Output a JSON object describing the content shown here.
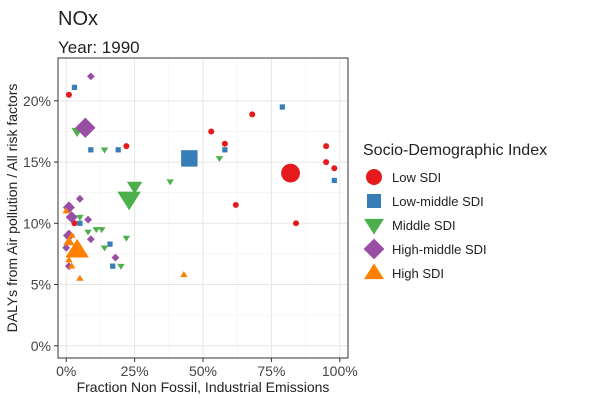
{
  "chart_data": {
    "type": "scatter",
    "title": "NOx",
    "subtitle": "Year: 1990",
    "xlabel": "Fraction Non Fossil, Industrial Emissions",
    "ylabel": "DALYs from Air pollution / All risk factors",
    "xlim": [
      -0.03,
      1.03
    ],
    "ylim": [
      -0.01,
      0.235
    ],
    "x_ticks": [
      0,
      0.25,
      0.5,
      0.75,
      1.0
    ],
    "x_tick_labels": [
      "0%",
      "25%",
      "50%",
      "75%",
      "100%"
    ],
    "y_ticks": [
      0,
      0.05,
      0.1,
      0.15,
      0.2
    ],
    "y_tick_labels": [
      "0%",
      "5%",
      "10%",
      "15%",
      "20%"
    ],
    "grid": true,
    "legend": {
      "title": "Socio-Demographic Index",
      "placement": "right",
      "entries": [
        {
          "label": "Low SDI",
          "color": "#e41a1c",
          "shape": "circle"
        },
        {
          "label": "Low-middle SDI",
          "color": "#377eb8",
          "shape": "square"
        },
        {
          "label": "Middle SDI",
          "color": "#4daf4a",
          "shape": "triangle-down"
        },
        {
          "label": "High-middle SDI",
          "color": "#984ea3",
          "shape": "diamond"
        },
        {
          "label": "High SDI",
          "color": "#ff7f00",
          "shape": "triangle-up"
        }
      ]
    },
    "series": [
      {
        "name": "Low SDI",
        "points": [
          {
            "x": 0.01,
            "y": 0.205,
            "size": 1
          },
          {
            "x": 0.22,
            "y": 0.163,
            "size": 1
          },
          {
            "x": 0.53,
            "y": 0.175,
            "size": 1
          },
          {
            "x": 0.58,
            "y": 0.165,
            "size": 1
          },
          {
            "x": 0.62,
            "y": 0.115,
            "size": 1
          },
          {
            "x": 0.68,
            "y": 0.189,
            "size": 1
          },
          {
            "x": 0.82,
            "y": 0.141,
            "size": 5
          },
          {
            "x": 0.84,
            "y": 0.1,
            "size": 1
          },
          {
            "x": 0.95,
            "y": 0.163,
            "size": 1
          },
          {
            "x": 0.95,
            "y": 0.15,
            "size": 1
          },
          {
            "x": 0.98,
            "y": 0.145,
            "size": 1
          },
          {
            "x": 0.02,
            "y": 0.105,
            "size": 1
          },
          {
            "x": 0.03,
            "y": 0.1,
            "size": 1
          }
        ]
      },
      {
        "name": "Low-middle SDI",
        "points": [
          {
            "x": 0.03,
            "y": 0.211,
            "size": 1
          },
          {
            "x": 0.09,
            "y": 0.16,
            "size": 1
          },
          {
            "x": 0.19,
            "y": 0.16,
            "size": 1
          },
          {
            "x": 0.45,
            "y": 0.153,
            "size": 5
          },
          {
            "x": 0.58,
            "y": 0.16,
            "size": 1
          },
          {
            "x": 0.79,
            "y": 0.195,
            "size": 1
          },
          {
            "x": 0.98,
            "y": 0.135,
            "size": 1
          },
          {
            "x": 0.16,
            "y": 0.083,
            "size": 1
          },
          {
            "x": 0.17,
            "y": 0.065,
            "size": 1
          },
          {
            "x": 0.05,
            "y": 0.1,
            "size": 1
          }
        ]
      },
      {
        "name": "Middle SDI",
        "points": [
          {
            "x": 0.04,
            "y": 0.175,
            "size": 2
          },
          {
            "x": 0.14,
            "y": 0.16,
            "size": 1
          },
          {
            "x": 0.23,
            "y": 0.12,
            "size": 5
          },
          {
            "x": 0.25,
            "y": 0.13,
            "size": 3
          },
          {
            "x": 0.38,
            "y": 0.134,
            "size": 1
          },
          {
            "x": 0.56,
            "y": 0.153,
            "size": 1
          },
          {
            "x": 0.11,
            "y": 0.095,
            "size": 1
          },
          {
            "x": 0.13,
            "y": 0.095,
            "size": 1
          },
          {
            "x": 0.22,
            "y": 0.088,
            "size": 1
          },
          {
            "x": 0.14,
            "y": 0.08,
            "size": 1
          },
          {
            "x": 0.2,
            "y": 0.065,
            "size": 1
          },
          {
            "x": 0.08,
            "y": 0.093,
            "size": 1
          },
          {
            "x": 0.05,
            "y": 0.105,
            "size": 1
          }
        ]
      },
      {
        "name": "High-middle SDI",
        "points": [
          {
            "x": 0.09,
            "y": 0.22,
            "size": 1
          },
          {
            "x": 0.07,
            "y": 0.178,
            "size": 4
          },
          {
            "x": 0.01,
            "y": 0.113,
            "size": 2
          },
          {
            "x": 0.02,
            "y": 0.105,
            "size": 2
          },
          {
            "x": 0.05,
            "y": 0.12,
            "size": 1
          },
          {
            "x": 0.08,
            "y": 0.103,
            "size": 1
          },
          {
            "x": 0.09,
            "y": 0.087,
            "size": 1
          },
          {
            "x": 0.01,
            "y": 0.09,
            "size": 2
          },
          {
            "x": 0.0,
            "y": 0.08,
            "size": 1
          },
          {
            "x": 0.18,
            "y": 0.072,
            "size": 1
          },
          {
            "x": 0.01,
            "y": 0.065,
            "size": 1
          }
        ]
      },
      {
        "name": "High SDI",
        "points": [
          {
            "x": 0.04,
            "y": 0.078,
            "size": 5
          },
          {
            "x": 0.01,
            "y": 0.085,
            "size": 2
          },
          {
            "x": 0.01,
            "y": 0.07,
            "size": 1
          },
          {
            "x": 0.02,
            "y": 0.065,
            "size": 1
          },
          {
            "x": 0.05,
            "y": 0.055,
            "size": 1
          },
          {
            "x": 0.43,
            "y": 0.058,
            "size": 1
          },
          {
            "x": 0.0,
            "y": 0.11,
            "size": 1
          },
          {
            "x": 0.02,
            "y": 0.09,
            "size": 1
          }
        ]
      }
    ]
  }
}
